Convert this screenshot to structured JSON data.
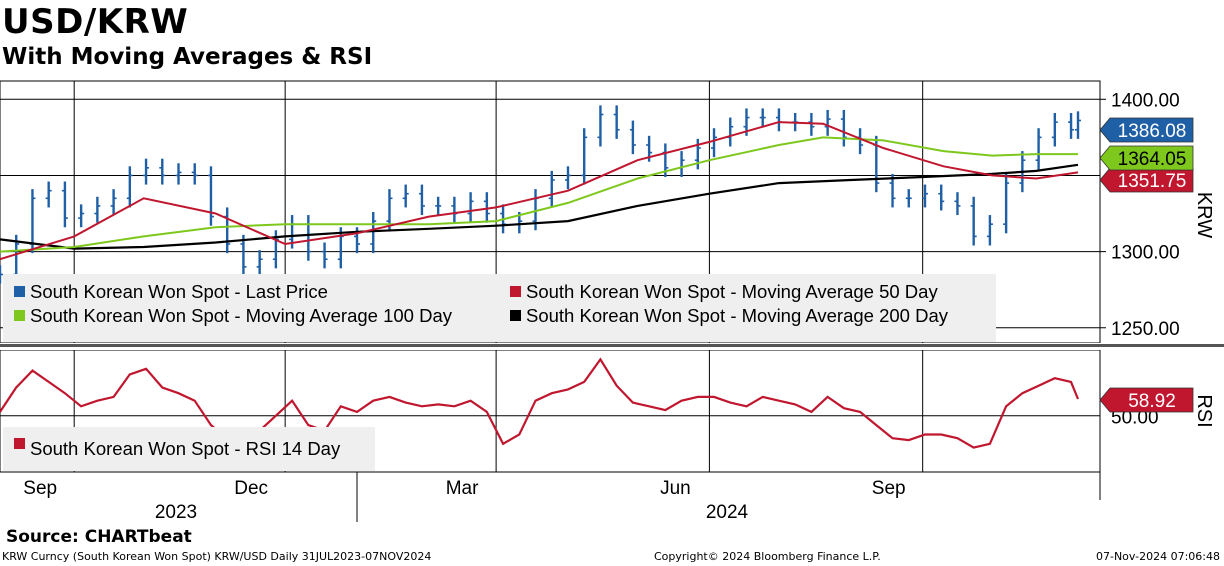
{
  "title": "USD/KRW",
  "subtitle": "With Moving Averages & RSI",
  "source": "Source: CHARTbeat",
  "footer": {
    "left": "KRW Curncy (South Korean Won Spot) KRW/USD  Daily 31JUL2023-07NOV2024",
    "center": "Copyright© 2024 Bloomberg Finance L.P.",
    "right": "07-Nov-2024 07:06:48"
  },
  "colors": {
    "price": "#1f5fa6",
    "ma50": "#c0172f",
    "ma100": "#7ec81d",
    "ma200": "#000000",
    "rsi": "#c0172f"
  },
  "chart_data": [
    {
      "type": "line",
      "panel": "price",
      "ylabel": "KRW",
      "ylim": [
        1240,
        1412
      ],
      "yticks": [
        "1250.00",
        "1300.00",
        "1400.00"
      ],
      "x_tick_labels": [
        "Sep",
        "Dec",
        "Mar",
        "Jun",
        "Sep"
      ],
      "x_tick_dates": [
        "2023-09-01",
        "2023-12-01",
        "2024-03-01",
        "2024-06-01",
        "2024-09-01"
      ],
      "year_labels": [
        "2023",
        "2024"
      ],
      "x_range": [
        "2023-07-31",
        "2024-11-07"
      ],
      "grid": true,
      "legend_position": "bottom-left",
      "series": [
        {
          "name": "South Korean Won Spot - Last Price",
          "style": "bar",
          "last_value_label": "1386.08",
          "x": [
            "2023-07-31",
            "2023-08-07",
            "2023-08-14",
            "2023-08-21",
            "2023-08-28",
            "2023-09-04",
            "2023-09-11",
            "2023-09-18",
            "2023-09-25",
            "2023-10-02",
            "2023-10-09",
            "2023-10-16",
            "2023-10-23",
            "2023-10-30",
            "2023-11-06",
            "2023-11-13",
            "2023-11-20",
            "2023-11-27",
            "2023-12-04",
            "2023-12-11",
            "2023-12-18",
            "2023-12-25",
            "2024-01-01",
            "2024-01-08",
            "2024-01-15",
            "2024-01-22",
            "2024-01-29",
            "2024-02-05",
            "2024-02-12",
            "2024-02-19",
            "2024-02-26",
            "2024-03-04",
            "2024-03-11",
            "2024-03-18",
            "2024-03-25",
            "2024-04-01",
            "2024-04-08",
            "2024-04-15",
            "2024-04-22",
            "2024-04-29",
            "2024-05-06",
            "2024-05-13",
            "2024-05-20",
            "2024-05-27",
            "2024-06-03",
            "2024-06-10",
            "2024-06-17",
            "2024-06-24",
            "2024-07-01",
            "2024-07-08",
            "2024-07-15",
            "2024-07-22",
            "2024-07-29",
            "2024-08-05",
            "2024-08-12",
            "2024-08-19",
            "2024-08-26",
            "2024-09-02",
            "2024-09-09",
            "2024-09-16",
            "2024-09-23",
            "2024-09-30",
            "2024-10-07",
            "2024-10-14",
            "2024-10-21",
            "2024-10-28",
            "2024-11-04",
            "2024-11-07"
          ],
          "y": [
            1285,
            1305,
            1335,
            1340,
            1322,
            1325,
            1330,
            1335,
            1350,
            1355,
            1350,
            1352,
            1350,
            1323,
            1305,
            1290,
            1295,
            1308,
            1318,
            1300,
            1295,
            1310,
            1305,
            1320,
            1335,
            1338,
            1330,
            1330,
            1325,
            1333,
            1325,
            1318,
            1320,
            1335,
            1347,
            1350,
            1375,
            1390,
            1380,
            1370,
            1365,
            1355,
            1360,
            1368,
            1375,
            1382,
            1388,
            1388,
            1385,
            1385,
            1382,
            1387,
            1375,
            1370,
            1345,
            1335,
            1335,
            1338,
            1333,
            1330,
            1310,
            1318,
            1345,
            1360,
            1375,
            1385,
            1380,
            1386.08
          ]
        },
        {
          "name": "South Korean Won Spot - Moving Average 50 Day",
          "style": "line",
          "last_value_label": "1351.75",
          "x": [
            "2023-07-31",
            "2023-09-01",
            "2023-10-01",
            "2023-11-01",
            "2023-12-01",
            "2024-01-01",
            "2024-02-01",
            "2024-03-01",
            "2024-04-01",
            "2024-05-01",
            "2024-06-01",
            "2024-07-01",
            "2024-07-20",
            "2024-08-15",
            "2024-09-10",
            "2024-10-01",
            "2024-10-20",
            "2024-11-07"
          ],
          "y": [
            1295,
            1310,
            1335,
            1325,
            1305,
            1312,
            1323,
            1329,
            1340,
            1360,
            1372,
            1385,
            1384,
            1368,
            1356,
            1350,
            1348,
            1352
          ]
        },
        {
          "name": "South Korean Won Spot - Moving Average 100 Day",
          "style": "line",
          "last_value_label": "1364.05",
          "x": [
            "2023-07-31",
            "2023-09-01",
            "2023-10-01",
            "2023-11-01",
            "2023-12-01",
            "2024-01-01",
            "2024-02-01",
            "2024-03-01",
            "2024-04-01",
            "2024-05-01",
            "2024-06-01",
            "2024-07-01",
            "2024-07-20",
            "2024-08-15",
            "2024-09-10",
            "2024-10-01",
            "2024-10-20",
            "2024-11-07"
          ],
          "y": [
            1300,
            1303,
            1310,
            1316,
            1318,
            1318,
            1318,
            1320,
            1332,
            1348,
            1360,
            1370,
            1375,
            1373,
            1366,
            1363,
            1364,
            1364
          ]
        },
        {
          "name": "South Korean Won Spot - Moving Average 200 Day",
          "style": "line",
          "last_value_label": "",
          "x": [
            "2023-07-31",
            "2023-09-01",
            "2023-10-01",
            "2023-11-01",
            "2023-12-01",
            "2024-01-01",
            "2024-02-01",
            "2024-03-01",
            "2024-04-01",
            "2024-05-01",
            "2024-06-01",
            "2024-07-01",
            "2024-08-01",
            "2024-09-01",
            "2024-10-01",
            "2024-10-20",
            "2024-11-07"
          ],
          "y": [
            1308,
            1302,
            1303,
            1306,
            1310,
            1313,
            1315,
            1317,
            1320,
            1330,
            1338,
            1345,
            1347,
            1349,
            1351,
            1353,
            1357
          ]
        }
      ]
    },
    {
      "type": "line",
      "panel": "rsi",
      "ylabel": "RSI",
      "ylim": [
        20,
        85
      ],
      "yticks": [
        "50.00"
      ],
      "grid": true,
      "legend_position": "bottom-left",
      "series": [
        {
          "name": "South Korean Won Spot - RSI 14 Day",
          "last_value_label": "58.92",
          "x": [
            "2023-07-31",
            "2023-08-07",
            "2023-08-14",
            "2023-08-21",
            "2023-08-28",
            "2023-09-04",
            "2023-09-11",
            "2023-09-18",
            "2023-09-25",
            "2023-10-02",
            "2023-10-09",
            "2023-10-16",
            "2023-10-23",
            "2023-10-30",
            "2023-11-06",
            "2023-11-13",
            "2023-11-20",
            "2023-11-27",
            "2023-12-04",
            "2023-12-11",
            "2023-12-18",
            "2023-12-25",
            "2024-01-01",
            "2024-01-08",
            "2024-01-15",
            "2024-01-22",
            "2024-01-29",
            "2024-02-05",
            "2024-02-12",
            "2024-02-19",
            "2024-02-26",
            "2024-03-04",
            "2024-03-11",
            "2024-03-18",
            "2024-03-25",
            "2024-04-01",
            "2024-04-08",
            "2024-04-15",
            "2024-04-22",
            "2024-04-29",
            "2024-05-06",
            "2024-05-13",
            "2024-05-20",
            "2024-05-27",
            "2024-06-03",
            "2024-06-10",
            "2024-06-17",
            "2024-06-24",
            "2024-07-01",
            "2024-07-08",
            "2024-07-15",
            "2024-07-22",
            "2024-07-29",
            "2024-08-05",
            "2024-08-12",
            "2024-08-19",
            "2024-08-26",
            "2024-09-02",
            "2024-09-09",
            "2024-09-16",
            "2024-09-23",
            "2024-09-30",
            "2024-10-07",
            "2024-10-14",
            "2024-10-21",
            "2024-10-28",
            "2024-11-04",
            "2024-11-07"
          ],
          "y": [
            52,
            65,
            74,
            68,
            62,
            55,
            58,
            60,
            72,
            75,
            65,
            62,
            58,
            45,
            38,
            40,
            42,
            50,
            58,
            45,
            42,
            55,
            52,
            58,
            60,
            57,
            55,
            56,
            55,
            58,
            52,
            35,
            40,
            58,
            62,
            64,
            68,
            80,
            66,
            57,
            55,
            53,
            58,
            60,
            60,
            57,
            55,
            60,
            58,
            56,
            52,
            60,
            54,
            52,
            45,
            38,
            37,
            40,
            40,
            38,
            33,
            35,
            55,
            62,
            66,
            70,
            68,
            58.92
          ]
        }
      ]
    }
  ]
}
